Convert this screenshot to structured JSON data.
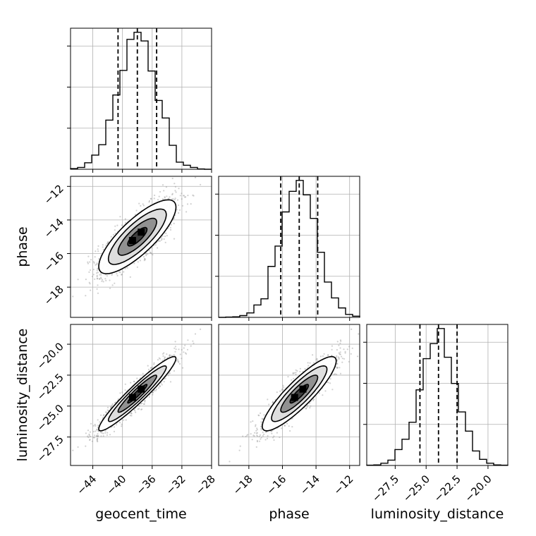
{
  "chart_data": {
    "type": "corner",
    "parameters": [
      {
        "name": "geocent_time",
        "label": "geocent_time",
        "range": [
          -47,
          -28
        ],
        "ticks": [
          -44,
          -40,
          -36,
          -32,
          -28
        ],
        "tick_labels": [
          "−44",
          "−40",
          "−36",
          "−32",
          "−28"
        ],
        "mean": -38,
        "sigma": 2.6,
        "quantiles": [
          -40.6,
          -38.0,
          -35.4
        ]
      },
      {
        "name": "phase",
        "label": "phase",
        "range": [
          -19.8,
          -11.4
        ],
        "ticks": [
          -18,
          -16,
          -14,
          -12
        ],
        "tick_labels": [
          "−18",
          "−16",
          "−14",
          "−12"
        ],
        "mean": -15.0,
        "sigma": 1.1,
        "quantiles": [
          -16.1,
          -15.0,
          -13.9
        ]
      },
      {
        "name": "luminosity_distance",
        "label": "luminosity_distance",
        "range": [
          -29.8,
          -18.4
        ],
        "ticks": [
          -27.5,
          -25.0,
          -22.5,
          -20.0
        ],
        "tick_labels": [
          "−27.5",
          "−25.0",
          "−22.5",
          "−20.0"
        ],
        "mean": -24.0,
        "sigma": 1.5,
        "quantiles": [
          -25.5,
          -24.0,
          -22.5
        ]
      }
    ],
    "correlations": {
      "0-1": 0.8,
      "0-2": 0.95,
      "1-2": 0.88
    },
    "histogram_bins": 20,
    "contour_levels_sigma": [
      0.5,
      1.0,
      1.5,
      2.0
    ],
    "grid": true,
    "style": {
      "hist_color": "#000000",
      "point_color": "#9a9a9a"
    }
  }
}
